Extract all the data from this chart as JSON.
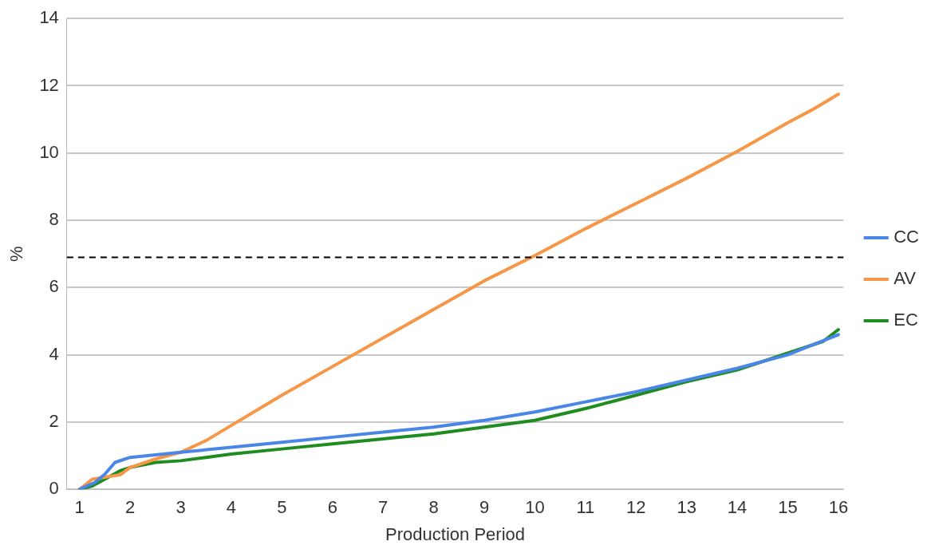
{
  "chart_data": {
    "type": "line",
    "xlabel": "Production Period",
    "ylabel": "%",
    "xlim": [
      0.75,
      16.1
    ],
    "xticks": [
      1,
      2,
      3,
      4,
      5,
      6,
      7,
      8,
      9,
      10,
      11,
      12,
      13,
      14,
      15,
      16
    ],
    "ylim": [
      0,
      14
    ],
    "yticks": [
      0,
      2,
      4,
      6,
      8,
      10,
      12,
      14
    ],
    "grid": "y",
    "legend": "right",
    "marker": "none",
    "line_style": "solid",
    "ref_lines": [
      {
        "axis": "y",
        "value": 6.9,
        "color": "#000000",
        "line_style": "dashed"
      }
    ],
    "series": [
      {
        "name": "CC",
        "color": "#4a86e8",
        "x": [
          1,
          1.3,
          1.5,
          1.7,
          2,
          3,
          4,
          5,
          6,
          7,
          8,
          9,
          10,
          11,
          12,
          13,
          14,
          15,
          16
        ],
        "values": [
          0,
          0.2,
          0.45,
          0.8,
          0.95,
          1.1,
          1.25,
          1.4,
          1.55,
          1.7,
          1.85,
          2.05,
          2.3,
          2.6,
          2.9,
          3.25,
          3.6,
          4.0,
          4.6
        ]
      },
      {
        "name": "AV",
        "color": "#f79646",
        "x": [
          1,
          1.25,
          1.8,
          2,
          2.5,
          3,
          3.5,
          4,
          5,
          6,
          7,
          8,
          9,
          10,
          11,
          12,
          13,
          14,
          15,
          15.5,
          16
        ],
        "values": [
          0,
          0.3,
          0.43,
          0.65,
          0.9,
          1.1,
          1.45,
          1.9,
          2.8,
          3.65,
          4.5,
          5.35,
          6.2,
          6.95,
          7.75,
          8.5,
          9.25,
          10.05,
          10.9,
          11.3,
          11.75
        ]
      },
      {
        "name": "EC",
        "color": "#1e8c1e",
        "x": [
          1,
          1.25,
          1.5,
          1.8,
          2,
          2.5,
          3,
          3.5,
          4,
          5,
          6,
          7,
          8,
          9,
          10,
          11,
          12,
          13,
          14,
          15,
          15.7,
          16
        ],
        "values": [
          0,
          0.1,
          0.3,
          0.55,
          0.65,
          0.8,
          0.85,
          0.95,
          1.05,
          1.2,
          1.35,
          1.5,
          1.65,
          1.85,
          2.05,
          2.4,
          2.8,
          3.2,
          3.55,
          4.05,
          4.4,
          4.75
        ]
      }
    ]
  }
}
